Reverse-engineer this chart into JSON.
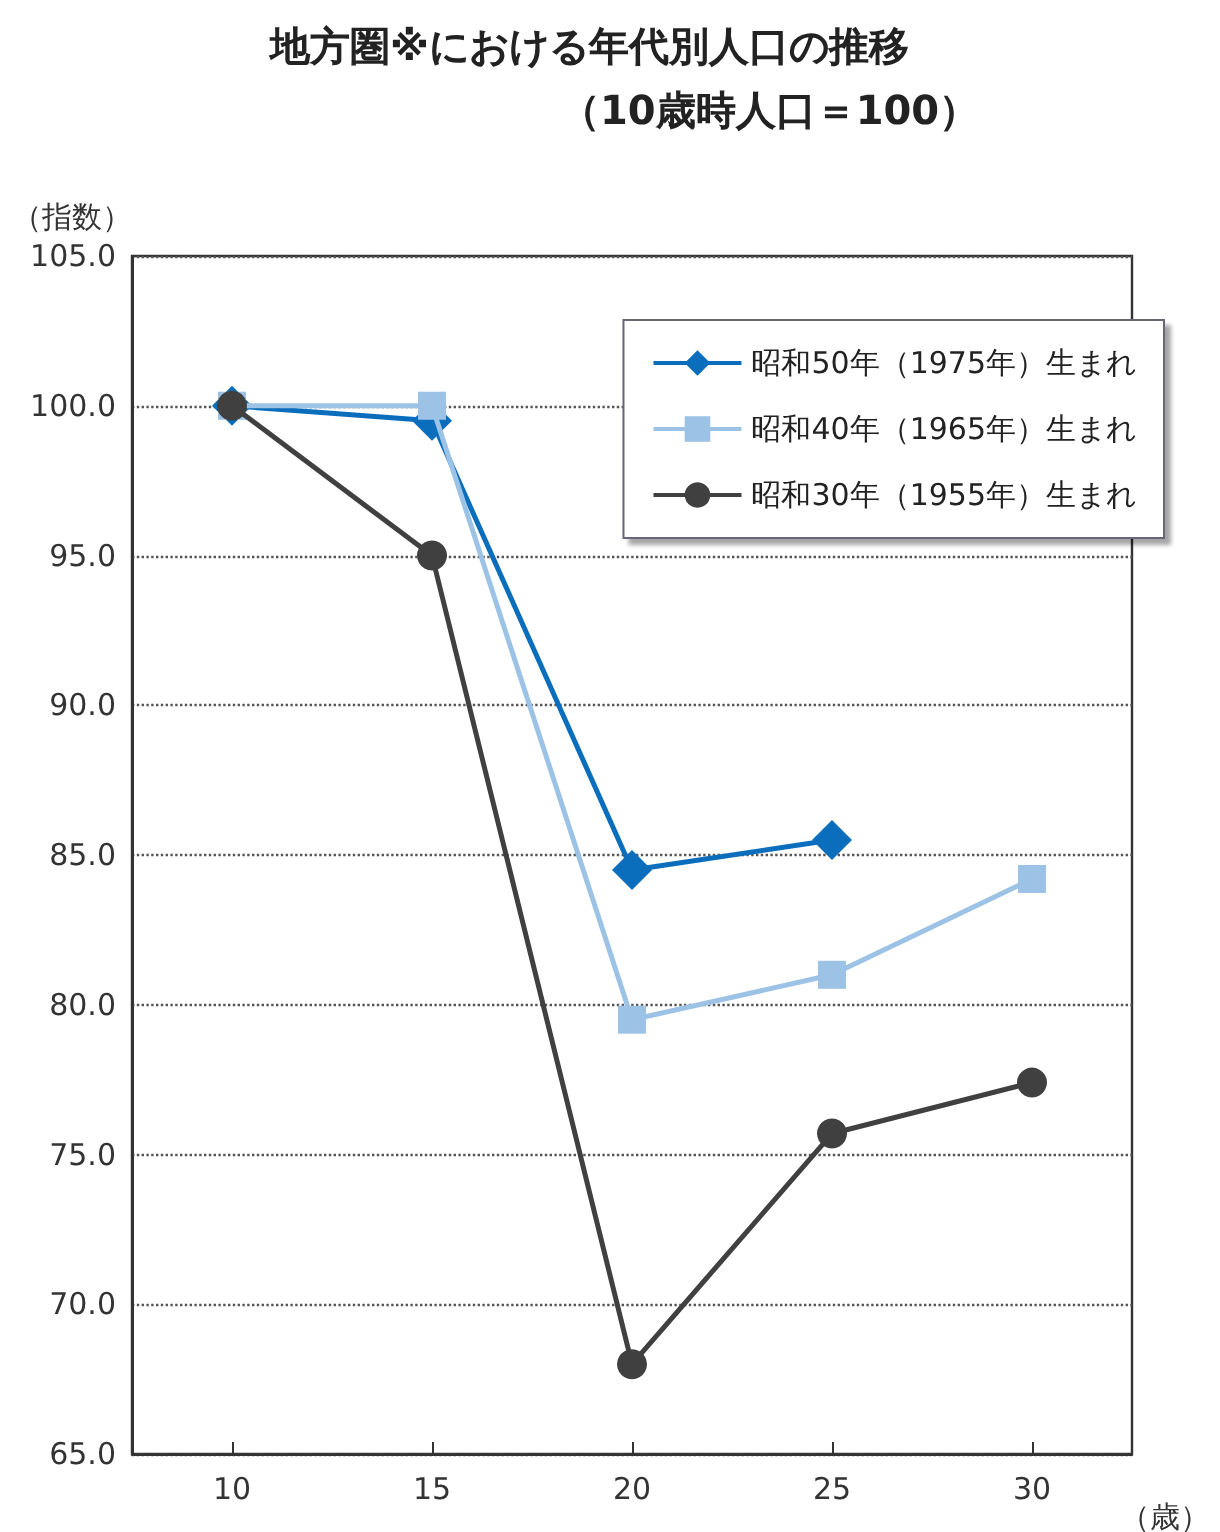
{
  "chart_data": {
    "type": "line",
    "title": "地方圏※における年代別人口の推移",
    "subtitle": "（10歳時人口＝100）",
    "ylabel": "（指数）",
    "xlabel": "（歳）",
    "categories": [
      "10",
      "15",
      "20",
      "25",
      "30"
    ],
    "series": [
      {
        "name": "昭和50年（1975年）生まれ",
        "color": "#0a6ebd",
        "marker": "diamond",
        "values": [
          100,
          99.5,
          84.5,
          85.5,
          null
        ]
      },
      {
        "name": "昭和40年（1965年）生まれ",
        "color": "#9cc3e6",
        "marker": "square",
        "values": [
          100,
          100,
          79.5,
          81.0,
          84.2
        ]
      },
      {
        "name": "昭和30年（1955年）生まれ",
        "color": "#404040",
        "marker": "circle",
        "values": [
          100,
          95.0,
          68.0,
          75.7,
          77.4
        ]
      }
    ],
    "ylim": [
      65,
      105
    ],
    "yticks": [
      {
        "value": 65,
        "label": "65.0"
      },
      {
        "value": 70,
        "label": "70.0"
      },
      {
        "value": 75,
        "label": "75.0"
      },
      {
        "value": 80,
        "label": "80.0"
      },
      {
        "value": 85,
        "label": "85.0"
      },
      {
        "value": 90,
        "label": "90.0"
      },
      {
        "value": 95,
        "label": "95.0"
      },
      {
        "value": 100,
        "label": "100.0"
      },
      {
        "value": 105,
        "label": "105.0"
      }
    ],
    "grid": "y",
    "legend": "top right",
    "line_style": "solid"
  }
}
